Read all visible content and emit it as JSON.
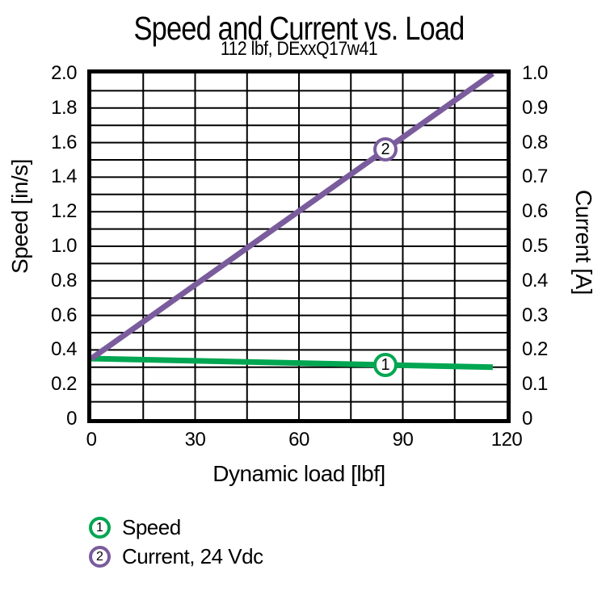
{
  "chart_data": {
    "type": "line",
    "title": "Speed and Current vs. Load",
    "subtitle": "112 lbf, DExxQ17w41",
    "xlabel": "Dynamic load [lbf]",
    "x_range": [
      0,
      120
    ],
    "x_ticks": [
      0,
      30,
      60,
      90,
      120
    ],
    "x_tick_labels": [
      "0",
      "30",
      "60",
      "90",
      "120"
    ],
    "x_grid_step": 15,
    "grid": true,
    "left_axis": {
      "label": "Speed [in/s]",
      "range": [
        0,
        2.0
      ],
      "grid_step": 0.1,
      "tick_values": [
        2.0,
        1.8,
        1.6,
        1.4,
        1.2,
        1.0,
        0.8,
        0.6,
        0.4,
        0.2,
        0
      ],
      "tick_labels": [
        "2.0",
        "1.8",
        "1.6",
        "1.4",
        "1.2",
        "1.0",
        "0.8",
        "0.6",
        "0.4",
        "0.2",
        "0"
      ]
    },
    "right_axis": {
      "label": "Current [A]",
      "range": [
        0,
        1.0
      ],
      "tick_values": [
        1.0,
        0.9,
        0.8,
        0.7,
        0.6,
        0.5,
        0.4,
        0.3,
        0.2,
        0.1,
        0
      ],
      "tick_labels": [
        "1.0",
        "0.9",
        "0.8",
        "0.7",
        "0.6",
        "0.5",
        "0.4",
        "0.3",
        "0.2",
        "0.1",
        "0"
      ]
    },
    "series": [
      {
        "name": "Speed",
        "axis": "left",
        "color": "#00A651",
        "marker_number": "1",
        "marker_x": 85,
        "points": [
          [
            0,
            0.35
          ],
          [
            116,
            0.3
          ]
        ]
      },
      {
        "name": "Current, 24 Vdc",
        "axis": "right",
        "color": "#7A5C9D",
        "marker_number": "2",
        "marker_x": 85,
        "points": [
          [
            0,
            0.175
          ],
          [
            116,
            1.0
          ]
        ]
      }
    ],
    "legend": {
      "position": "bottom-left",
      "items": [
        {
          "number": "1",
          "label": "Speed",
          "color": "#00A651"
        },
        {
          "number": "2",
          "label": "Current, 24 Vdc",
          "color": "#7A5C9D"
        }
      ]
    }
  }
}
